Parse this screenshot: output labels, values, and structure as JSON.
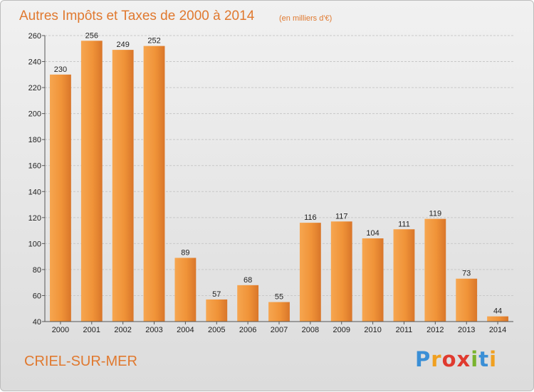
{
  "chart_data": {
    "type": "bar",
    "title": "Autres Impôts et Taxes de 2000 à 2014",
    "unit": "(en milliers d'€)",
    "categories": [
      "2000",
      "2001",
      "2002",
      "2003",
      "2004",
      "2005",
      "2006",
      "2007",
      "2008",
      "2009",
      "2010",
      "2011",
      "2012",
      "2013",
      "2014"
    ],
    "values": [
      230,
      256,
      249,
      252,
      89,
      57,
      68,
      55,
      116,
      117,
      104,
      111,
      119,
      73,
      44
    ],
    "ylim": [
      40,
      260
    ],
    "yticks": [
      40,
      60,
      80,
      100,
      120,
      140,
      160,
      180,
      200,
      220,
      240,
      260
    ],
    "grid": true,
    "bar_color": "#f0953a"
  },
  "location": "CRIEL-SUR-MER",
  "logo": {
    "letters": [
      "P",
      "r",
      "o",
      "x",
      "i",
      "t",
      "i"
    ],
    "colors": [
      "#3a8fd6",
      "#f0a020",
      "#e03a2f",
      "#e03a2f",
      "#7ab32e",
      "#3a8fd6",
      "#f0a020"
    ]
  }
}
